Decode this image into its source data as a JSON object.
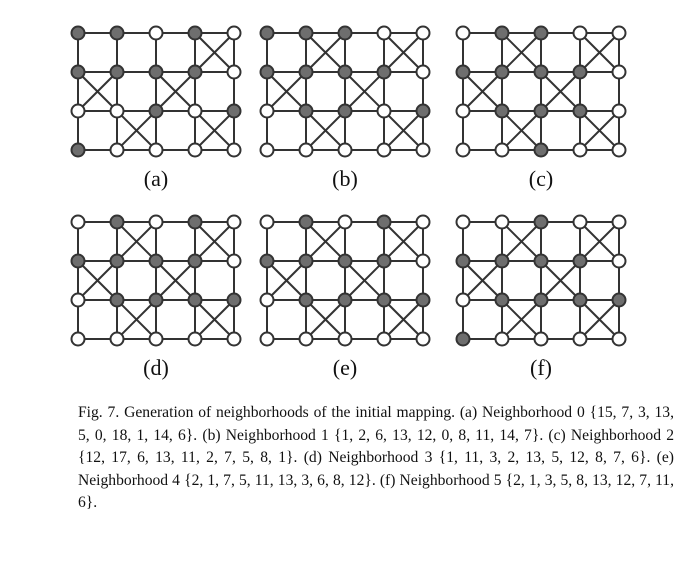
{
  "figure": {
    "grid": {
      "rows": 4,
      "cols": 5
    },
    "panels": [
      {
        "label": "(a)",
        "active": [
          [
            0,
            0
          ],
          [
            0,
            1
          ],
          [
            0,
            3
          ],
          [
            1,
            0
          ],
          [
            1,
            1
          ],
          [
            1,
            2
          ],
          [
            1,
            3
          ],
          [
            2,
            2
          ],
          [
            2,
            4
          ],
          [
            3,
            0
          ]
        ],
        "crossed": [
          [
            0,
            3
          ],
          [
            1,
            0
          ],
          [
            1,
            2
          ],
          [
            2,
            1
          ],
          [
            2,
            3
          ]
        ]
      },
      {
        "label": "(b)",
        "active": [
          [
            0,
            0
          ],
          [
            0,
            1
          ],
          [
            0,
            2
          ],
          [
            1,
            0
          ],
          [
            1,
            1
          ],
          [
            1,
            2
          ],
          [
            1,
            3
          ],
          [
            2,
            1
          ],
          [
            2,
            2
          ],
          [
            2,
            4
          ]
        ],
        "crossed": [
          [
            0,
            1
          ],
          [
            0,
            3
          ],
          [
            1,
            0
          ],
          [
            1,
            2
          ],
          [
            2,
            1
          ],
          [
            2,
            3
          ]
        ]
      },
      {
        "label": "(c)",
        "active": [
          [
            0,
            1
          ],
          [
            0,
            2
          ],
          [
            1,
            0
          ],
          [
            1,
            1
          ],
          [
            1,
            2
          ],
          [
            1,
            3
          ],
          [
            2,
            1
          ],
          [
            2,
            2
          ],
          [
            2,
            3
          ],
          [
            3,
            2
          ]
        ],
        "crossed": [
          [
            0,
            1
          ],
          [
            0,
            3
          ],
          [
            1,
            0
          ],
          [
            1,
            2
          ],
          [
            2,
            1
          ],
          [
            2,
            3
          ]
        ]
      },
      {
        "label": "(d)",
        "active": [
          [
            0,
            1
          ],
          [
            0,
            3
          ],
          [
            1,
            0
          ],
          [
            1,
            1
          ],
          [
            1,
            2
          ],
          [
            1,
            3
          ],
          [
            2,
            1
          ],
          [
            2,
            2
          ],
          [
            2,
            3
          ],
          [
            2,
            4
          ]
        ],
        "crossed": [
          [
            0,
            1
          ],
          [
            0,
            3
          ],
          [
            1,
            0
          ],
          [
            1,
            2
          ],
          [
            2,
            1
          ],
          [
            2,
            3
          ]
        ]
      },
      {
        "label": "(e)",
        "active": [
          [
            0,
            1
          ],
          [
            0,
            3
          ],
          [
            1,
            0
          ],
          [
            1,
            1
          ],
          [
            1,
            2
          ],
          [
            1,
            3
          ],
          [
            2,
            1
          ],
          [
            2,
            2
          ],
          [
            2,
            3
          ],
          [
            2,
            4
          ]
        ],
        "crossed": [
          [
            0,
            1
          ],
          [
            0,
            3
          ],
          [
            1,
            0
          ],
          [
            1,
            2
          ],
          [
            2,
            1
          ],
          [
            2,
            3
          ]
        ]
      },
      {
        "label": "(f)",
        "active": [
          [
            0,
            2
          ],
          [
            1,
            0
          ],
          [
            1,
            1
          ],
          [
            1,
            2
          ],
          [
            1,
            3
          ],
          [
            2,
            1
          ],
          [
            2,
            2
          ],
          [
            2,
            3
          ],
          [
            2,
            4
          ],
          [
            3,
            0
          ]
        ],
        "crossed": [
          [
            0,
            1
          ],
          [
            0,
            3
          ],
          [
            1,
            0
          ],
          [
            1,
            2
          ],
          [
            2,
            1
          ],
          [
            2,
            3
          ]
        ]
      }
    ]
  },
  "caption": {
    "text": "Fig. 7. Generation of neighborhoods of the initial mapping. (a) Neighborhood 0 {15, 7, 3, 13, 5, 0, 18, 1, 14, 6}. (b) Neighborhood 1 {1, 2, 6, 13, 12, 0, 8, 11, 14, 7}. (c) Neighborhood 2 {12, 17, 6, 13, 11, 2, 7, 5, 8, 1}. (d) Neighborhood 3 {1, 11, 3, 2, 13, 5, 12, 8, 7, 6}. (e) Neighborhood 4 {2, 1, 7, 5, 11, 13, 3, 6, 8, 12}. (f) Neighborhood 5 {2, 1, 3, 5, 8, 13, 12, 7, 11, 6}."
  }
}
